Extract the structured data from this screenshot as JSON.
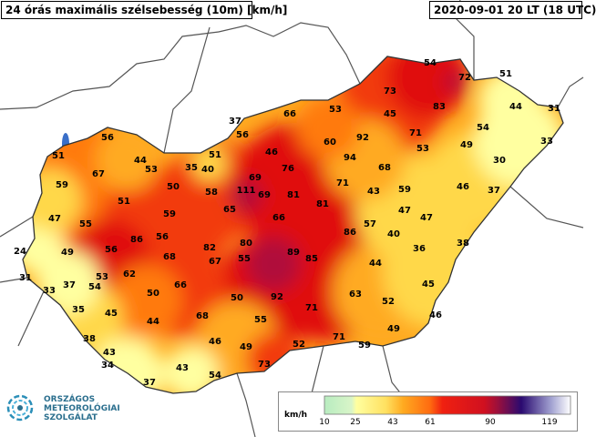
{
  "header": {
    "title": "24 órás maximális szélsebesség (10m) [km/h]",
    "timestamp": "2020-09-01 20 LT (18 UTC)"
  },
  "map": {
    "subject": "Hungary maximum wind speed field",
    "station_values": [
      {
        "v": "54"
      },
      {
        "v": "72"
      },
      {
        "v": "51"
      },
      {
        "v": "73"
      },
      {
        "v": "44"
      },
      {
        "v": "31"
      },
      {
        "v": "45"
      },
      {
        "v": "83"
      },
      {
        "v": "53"
      },
      {
        "v": "66"
      },
      {
        "v": "37"
      },
      {
        "v": "33"
      },
      {
        "v": "54"
      },
      {
        "v": "56"
      },
      {
        "v": "71"
      },
      {
        "v": "49"
      },
      {
        "v": "60"
      },
      {
        "v": "92"
      },
      {
        "v": "53"
      },
      {
        "v": "46"
      },
      {
        "v": "94"
      },
      {
        "v": "56"
      },
      {
        "v": "51"
      },
      {
        "v": "44"
      },
      {
        "v": "53"
      },
      {
        "v": "35"
      },
      {
        "v": "40"
      },
      {
        "v": "76"
      },
      {
        "v": "68"
      },
      {
        "v": "30"
      },
      {
        "v": "67"
      },
      {
        "v": "51"
      },
      {
        "v": "59"
      },
      {
        "v": "50"
      },
      {
        "v": "69"
      },
      {
        "v": "111"
      },
      {
        "v": "69"
      },
      {
        "v": "58"
      },
      {
        "v": "71"
      },
      {
        "v": "43"
      },
      {
        "v": "59"
      },
      {
        "v": "46"
      },
      {
        "v": "37"
      },
      {
        "v": "51"
      },
      {
        "v": "81"
      },
      {
        "v": "81"
      },
      {
        "v": "65"
      },
      {
        "v": "47"
      },
      {
        "v": "59"
      },
      {
        "v": "66"
      },
      {
        "v": "47"
      },
      {
        "v": "47"
      },
      {
        "v": "55"
      },
      {
        "v": "57"
      },
      {
        "v": "24"
      },
      {
        "v": "86"
      },
      {
        "v": "56"
      },
      {
        "v": "86"
      },
      {
        "v": "82"
      },
      {
        "v": "80"
      },
      {
        "v": "40"
      },
      {
        "v": "38"
      },
      {
        "v": "89"
      },
      {
        "v": "36"
      },
      {
        "v": "49"
      },
      {
        "v": "56"
      },
      {
        "v": "68"
      },
      {
        "v": "67"
      },
      {
        "v": "55"
      },
      {
        "v": "85"
      },
      {
        "v": "44"
      },
      {
        "v": "31"
      },
      {
        "v": "53"
      },
      {
        "v": "62"
      },
      {
        "v": "33"
      },
      {
        "v": "37"
      },
      {
        "v": "54"
      },
      {
        "v": "66"
      },
      {
        "v": "45"
      },
      {
        "v": "50"
      },
      {
        "v": "92"
      },
      {
        "v": "63"
      },
      {
        "v": "52"
      },
      {
        "v": "50"
      },
      {
        "v": "35"
      },
      {
        "v": "45"
      },
      {
        "v": "68"
      },
      {
        "v": "71"
      },
      {
        "v": "46"
      },
      {
        "v": "44"
      },
      {
        "v": "55"
      },
      {
        "v": "49"
      },
      {
        "v": "38"
      },
      {
        "v": "46"
      },
      {
        "v": "71"
      },
      {
        "v": "43"
      },
      {
        "v": "49"
      },
      {
        "v": "52"
      },
      {
        "v": "59"
      },
      {
        "v": "34"
      },
      {
        "v": "43"
      },
      {
        "v": "54"
      },
      {
        "v": "73"
      },
      {
        "v": "37"
      }
    ]
  },
  "legend": {
    "unit": "km/h",
    "ticks": [
      "10",
      "25",
      "43",
      "61",
      "90",
      "119"
    ]
  },
  "logo": {
    "line1": "ORSZÁGOS",
    "line2": "METEOROLÓGIAI",
    "line3": "SZOLGÁLAT"
  },
  "colors": {
    "c10": "#b8ecc0",
    "c25": "#ffffa0",
    "c35": "#ffd84a",
    "c43": "#ffaa20",
    "c52": "#ff7a10",
    "c61": "#f23a10",
    "c75": "#e01010",
    "c90": "#b0103a",
    "c119": "#3a0a8a"
  }
}
